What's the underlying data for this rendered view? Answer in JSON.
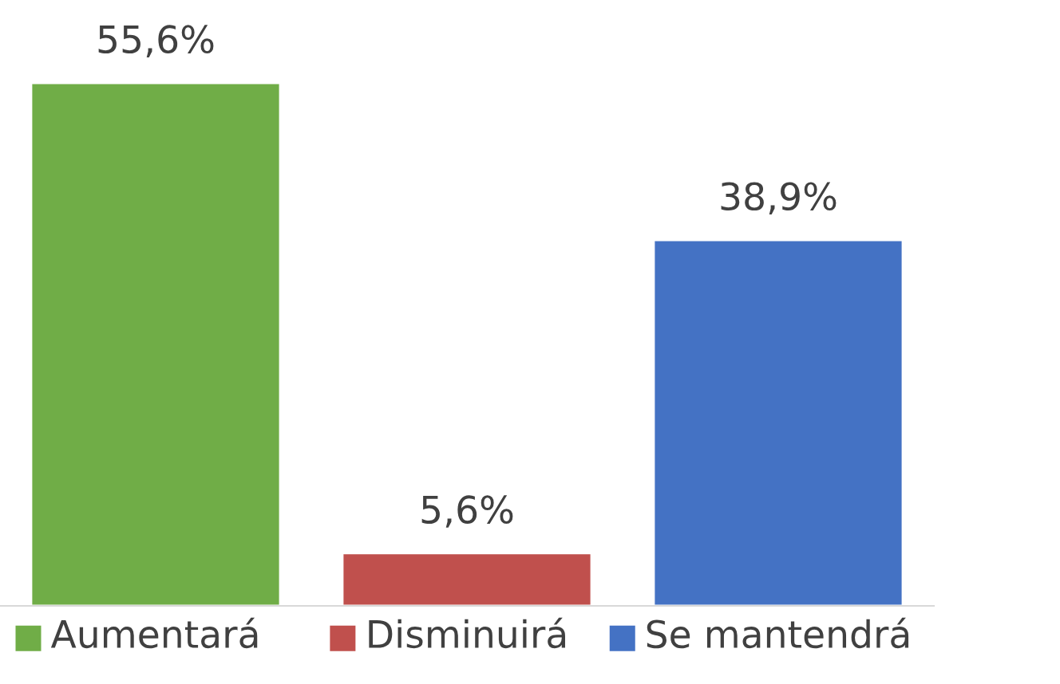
{
  "chart_data": {
    "type": "bar",
    "categories": [
      "Aumentará",
      "Disminuirá",
      "Se mantendrá"
    ],
    "values": [
      55.6,
      5.6,
      38.9
    ],
    "colors": [
      "#70ad47",
      "#c0504d",
      "#4472c4"
    ],
    "value_labels": [
      "55,6%",
      "5,6%",
      "38,9%"
    ],
    "grid": false
  }
}
